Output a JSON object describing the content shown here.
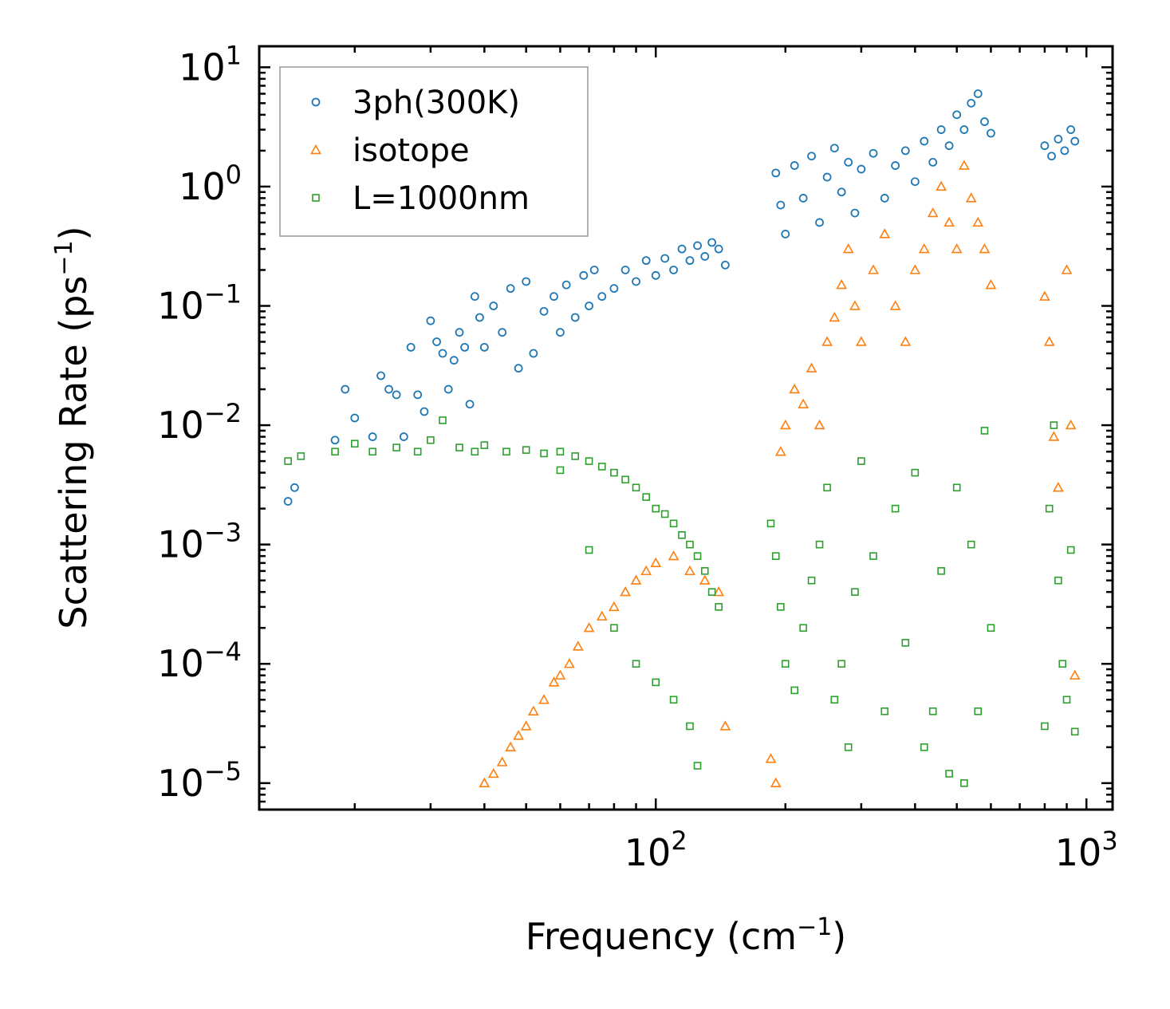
{
  "chart_data": {
    "type": "scatter",
    "title": "",
    "xlabel": "Frequency (cm",
    "xlabel_sup": "−1",
    "xlabel_end": ")",
    "ylabel": "Scattering Rate (ps",
    "ylabel_sup": "−1",
    "ylabel_end": ")",
    "xscale": "log",
    "yscale": "log",
    "xlim": [
      12,
      1150
    ],
    "ylim": [
      6e-06,
      15
    ],
    "x_ticks": [
      {
        "value": 100,
        "base": "10",
        "exp": "2"
      },
      {
        "value": 1000,
        "base": "10",
        "exp": "3"
      }
    ],
    "y_ticks": [
      {
        "value": 10,
        "base": "10",
        "exp": "1"
      },
      {
        "value": 1,
        "base": "10",
        "exp": "0"
      },
      {
        "value": 0.1,
        "base": "10",
        "exp": "−1"
      },
      {
        "value": 0.01,
        "base": "10",
        "exp": "−2"
      },
      {
        "value": 0.001,
        "base": "10",
        "exp": "−3"
      },
      {
        "value": 0.0001,
        "base": "10",
        "exp": "−4"
      },
      {
        "value": 1e-05,
        "base": "10",
        "exp": "−5"
      }
    ],
    "legend_position": "top-left",
    "series": [
      {
        "name": "3ph(300K)",
        "marker": "circle",
        "color": "#1f77b4",
        "points": [
          [
            14,
            0.0023
          ],
          [
            14.5,
            0.003
          ],
          [
            18,
            0.0075
          ],
          [
            19,
            0.02
          ],
          [
            20,
            0.0115
          ],
          [
            22,
            0.008
          ],
          [
            23,
            0.026
          ],
          [
            24,
            0.02
          ],
          [
            25,
            0.018
          ],
          [
            26,
            0.008
          ],
          [
            27,
            0.045
          ],
          [
            28,
            0.018
          ],
          [
            29,
            0.013
          ],
          [
            30,
            0.075
          ],
          [
            31,
            0.05
          ],
          [
            32,
            0.04
          ],
          [
            33,
            0.02
          ],
          [
            34,
            0.035
          ],
          [
            35,
            0.06
          ],
          [
            36,
            0.045
          ],
          [
            37,
            0.015
          ],
          [
            38,
            0.12
          ],
          [
            39,
            0.08
          ],
          [
            40,
            0.045
          ],
          [
            42,
            0.1
          ],
          [
            44,
            0.06
          ],
          [
            46,
            0.14
          ],
          [
            48,
            0.03
          ],
          [
            50,
            0.16
          ],
          [
            52,
            0.04
          ],
          [
            55,
            0.09
          ],
          [
            58,
            0.12
          ],
          [
            60,
            0.06
          ],
          [
            62,
            0.15
          ],
          [
            65,
            0.08
          ],
          [
            68,
            0.18
          ],
          [
            70,
            0.1
          ],
          [
            72,
            0.2
          ],
          [
            75,
            0.12
          ],
          [
            80,
            0.14
          ],
          [
            85,
            0.2
          ],
          [
            90,
            0.16
          ],
          [
            95,
            0.24
          ],
          [
            100,
            0.18
          ],
          [
            105,
            0.25
          ],
          [
            110,
            0.2
          ],
          [
            115,
            0.3
          ],
          [
            120,
            0.24
          ],
          [
            125,
            0.32
          ],
          [
            130,
            0.26
          ],
          [
            135,
            0.34
          ],
          [
            140,
            0.3
          ],
          [
            145,
            0.22
          ],
          [
            190,
            1.3
          ],
          [
            195,
            0.7
          ],
          [
            200,
            0.4
          ],
          [
            210,
            1.5
          ],
          [
            220,
            0.8
          ],
          [
            230,
            1.8
          ],
          [
            240,
            0.5
          ],
          [
            250,
            1.2
          ],
          [
            260,
            2.1
          ],
          [
            270,
            0.9
          ],
          [
            280,
            1.6
          ],
          [
            290,
            0.6
          ],
          [
            300,
            1.4
          ],
          [
            320,
            1.9
          ],
          [
            340,
            0.8
          ],
          [
            360,
            1.5
          ],
          [
            380,
            2.0
          ],
          [
            400,
            1.1
          ],
          [
            420,
            2.4
          ],
          [
            440,
            1.6
          ],
          [
            460,
            3.0
          ],
          [
            480,
            2.2
          ],
          [
            500,
            4.0
          ],
          [
            520,
            3.0
          ],
          [
            540,
            5.0
          ],
          [
            560,
            6.0
          ],
          [
            580,
            3.5
          ],
          [
            600,
            2.8
          ],
          [
            800,
            2.2
          ],
          [
            830,
            1.8
          ],
          [
            860,
            2.5
          ],
          [
            890,
            2.0
          ],
          [
            920,
            3.0
          ],
          [
            940,
            2.4
          ]
        ]
      },
      {
        "name": "isotope",
        "marker": "triangle",
        "color": "#ff7f0e",
        "points": [
          [
            40,
            1e-05
          ],
          [
            42,
            1.2e-05
          ],
          [
            44,
            1.5e-05
          ],
          [
            46,
            2e-05
          ],
          [
            48,
            2.5e-05
          ],
          [
            50,
            3e-05
          ],
          [
            52,
            4e-05
          ],
          [
            55,
            5e-05
          ],
          [
            58,
            7e-05
          ],
          [
            60,
            8e-05
          ],
          [
            63,
            0.0001
          ],
          [
            66,
            0.00014
          ],
          [
            70,
            0.0002
          ],
          [
            75,
            0.00025
          ],
          [
            80,
            0.0003
          ],
          [
            85,
            0.0004
          ],
          [
            90,
            0.0005
          ],
          [
            95,
            0.0006
          ],
          [
            100,
            0.0007
          ],
          [
            110,
            0.0008
          ],
          [
            120,
            0.0006
          ],
          [
            130,
            0.0005
          ],
          [
            140,
            0.0004
          ],
          [
            145,
            3e-05
          ],
          [
            185,
            1.6e-05
          ],
          [
            190,
            1e-05
          ],
          [
            195,
            0.006
          ],
          [
            200,
            0.01
          ],
          [
            210,
            0.02
          ],
          [
            220,
            0.015
          ],
          [
            230,
            0.03
          ],
          [
            240,
            0.01
          ],
          [
            250,
            0.05
          ],
          [
            260,
            0.08
          ],
          [
            270,
            0.15
          ],
          [
            280,
            0.3
          ],
          [
            290,
            0.1
          ],
          [
            300,
            0.05
          ],
          [
            320,
            0.2
          ],
          [
            340,
            0.4
          ],
          [
            360,
            0.1
          ],
          [
            380,
            0.05
          ],
          [
            400,
            0.2
          ],
          [
            420,
            0.3
          ],
          [
            440,
            0.6
          ],
          [
            460,
            1.0
          ],
          [
            480,
            0.5
          ],
          [
            500,
            0.3
          ],
          [
            520,
            1.5
          ],
          [
            540,
            0.8
          ],
          [
            560,
            0.5
          ],
          [
            580,
            0.3
          ],
          [
            600,
            0.15
          ],
          [
            800,
            0.12
          ],
          [
            820,
            0.05
          ],
          [
            840,
            0.008
          ],
          [
            860,
            0.003
          ],
          [
            900,
            0.2
          ],
          [
            920,
            0.01
          ],
          [
            940,
            8e-05
          ]
        ]
      },
      {
        "name": "L=1000nm",
        "marker": "square",
        "color": "#2ca02c",
        "points": [
          [
            14,
            0.005
          ],
          [
            15,
            0.0055
          ],
          [
            18,
            0.006
          ],
          [
            20,
            0.007
          ],
          [
            22,
            0.006
          ],
          [
            25,
            0.0065
          ],
          [
            28,
            0.006
          ],
          [
            30,
            0.0075
          ],
          [
            32,
            0.011
          ],
          [
            35,
            0.0065
          ],
          [
            38,
            0.006
          ],
          [
            40,
            0.0068
          ],
          [
            45,
            0.006
          ],
          [
            50,
            0.0062
          ],
          [
            55,
            0.0058
          ],
          [
            60,
            0.006
          ],
          [
            65,
            0.0055
          ],
          [
            70,
            0.005
          ],
          [
            75,
            0.0045
          ],
          [
            80,
            0.004
          ],
          [
            85,
            0.0035
          ],
          [
            90,
            0.003
          ],
          [
            95,
            0.0025
          ],
          [
            100,
            0.002
          ],
          [
            105,
            0.0018
          ],
          [
            110,
            0.0015
          ],
          [
            115,
            0.0012
          ],
          [
            120,
            0.001
          ],
          [
            125,
            0.0008
          ],
          [
            130,
            0.0006
          ],
          [
            135,
            0.0004
          ],
          [
            140,
            0.0003
          ],
          [
            60,
            0.0042
          ],
          [
            70,
            0.0009
          ],
          [
            80,
            0.0002
          ],
          [
            90,
            0.0001
          ],
          [
            100,
            7e-05
          ],
          [
            110,
            5e-05
          ],
          [
            120,
            3e-05
          ],
          [
            125,
            1.4e-05
          ],
          [
            185,
            0.0015
          ],
          [
            190,
            0.0008
          ],
          [
            195,
            0.0003
          ],
          [
            200,
            0.0001
          ],
          [
            210,
            6e-05
          ],
          [
            220,
            0.0002
          ],
          [
            230,
            0.0005
          ],
          [
            240,
            0.001
          ],
          [
            250,
            0.003
          ],
          [
            260,
            5e-05
          ],
          [
            270,
            0.0001
          ],
          [
            280,
            2e-05
          ],
          [
            290,
            0.0004
          ],
          [
            300,
            0.005
          ],
          [
            320,
            0.0008
          ],
          [
            340,
            4e-05
          ],
          [
            360,
            0.002
          ],
          [
            380,
            0.00015
          ],
          [
            400,
            0.004
          ],
          [
            420,
            2e-05
          ],
          [
            440,
            4e-05
          ],
          [
            460,
            0.0006
          ],
          [
            480,
            1.2e-05
          ],
          [
            500,
            0.003
          ],
          [
            520,
            1e-05
          ],
          [
            540,
            0.001
          ],
          [
            560,
            4e-05
          ],
          [
            580,
            0.009
          ],
          [
            600,
            0.0002
          ],
          [
            800,
            3e-05
          ],
          [
            820,
            0.002
          ],
          [
            840,
            0.01
          ],
          [
            860,
            0.0005
          ],
          [
            880,
            0.0001
          ],
          [
            900,
            5e-05
          ],
          [
            920,
            0.0009
          ],
          [
            940,
            2.7e-05
          ]
        ]
      }
    ]
  }
}
